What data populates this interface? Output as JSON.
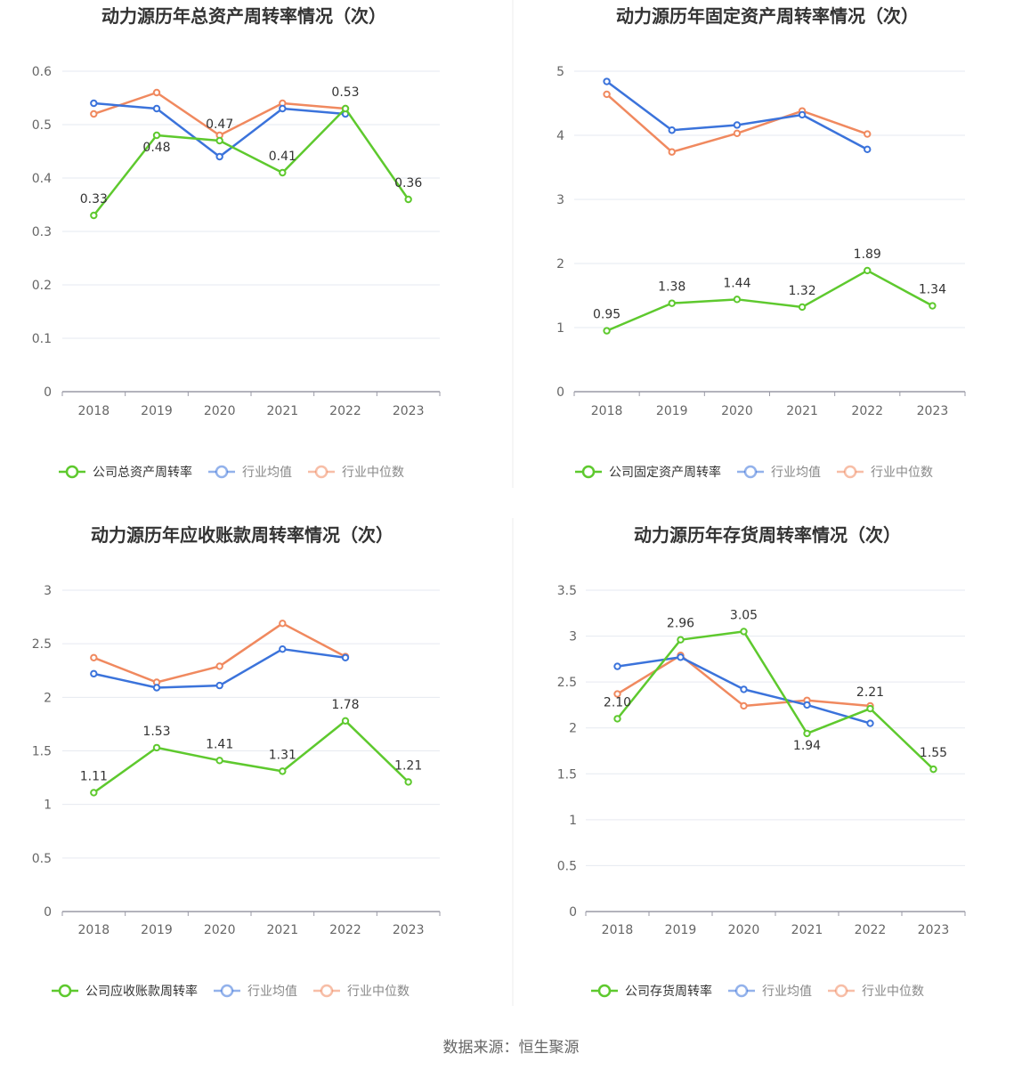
{
  "source": "数据来源：恒生聚源",
  "colors": {
    "company": "#5ec92e",
    "avg": "#3b73db",
    "median": "#f0895f",
    "grid": "#e6e9f0",
    "axis": "#9a9aa6"
  },
  "chart_data": [
    {
      "type": "line",
      "title": "动力源历年总资产周转率情况（次）",
      "categories": [
        "2018",
        "2019",
        "2020",
        "2021",
        "2022",
        "2023"
      ],
      "yticks": [
        "0",
        "0.1",
        "0.2",
        "0.3",
        "0.4",
        "0.5",
        "0.6"
      ],
      "ylim": [
        0,
        0.6
      ],
      "grid": true,
      "legend_position": "bottom",
      "series": [
        {
          "name": "公司总资产周转率",
          "color": "#5ec92e",
          "values": [
            0.33,
            0.48,
            0.47,
            0.41,
            0.53,
            0.36
          ],
          "labels": [
            "0.33",
            "0.48",
            "0.47",
            "0.41",
            "0.53",
            "0.36"
          ]
        },
        {
          "name": "行业均值",
          "color": "#3b73db",
          "values": [
            0.54,
            0.53,
            0.44,
            0.53,
            0.52,
            null
          ]
        },
        {
          "name": "行业中位数",
          "color": "#f0895f",
          "values": [
            0.52,
            0.56,
            0.48,
            0.54,
            0.53,
            null
          ]
        }
      ]
    },
    {
      "type": "line",
      "title": "动力源历年固定资产周转率情况（次）",
      "categories": [
        "2018",
        "2019",
        "2020",
        "2021",
        "2022",
        "2023"
      ],
      "yticks": [
        "0",
        "1",
        "2",
        "3",
        "4",
        "5"
      ],
      "ylim": [
        0,
        5
      ],
      "grid": true,
      "legend_position": "bottom",
      "series": [
        {
          "name": "公司固定资产周转率",
          "color": "#5ec92e",
          "values": [
            0.95,
            1.38,
            1.44,
            1.32,
            1.89,
            1.34
          ],
          "labels": [
            "0.95",
            "1.38",
            "1.44",
            "1.32",
            "1.89",
            "1.34"
          ]
        },
        {
          "name": "行业均值",
          "color": "#3b73db",
          "values": [
            4.84,
            4.08,
            4.16,
            4.32,
            3.78,
            null
          ]
        },
        {
          "name": "行业中位数",
          "color": "#f0895f",
          "values": [
            4.64,
            3.74,
            4.03,
            4.38,
            4.02,
            null
          ]
        }
      ]
    },
    {
      "type": "line",
      "title": "动力源历年应收账款周转率情况（次）",
      "categories": [
        "2018",
        "2019",
        "2020",
        "2021",
        "2022",
        "2023"
      ],
      "yticks": [
        "0",
        "0.5",
        "1",
        "1.5",
        "2",
        "2.5",
        "3"
      ],
      "ylim": [
        0,
        3
      ],
      "grid": true,
      "legend_position": "bottom",
      "series": [
        {
          "name": "公司应收账款周转率",
          "color": "#5ec92e",
          "values": [
            1.11,
            1.53,
            1.41,
            1.31,
            1.78,
            1.21
          ],
          "labels": [
            "1.11",
            "1.53",
            "1.41",
            "1.31",
            "1.78",
            "1.21"
          ]
        },
        {
          "name": "行业均值",
          "color": "#3b73db",
          "values": [
            2.22,
            2.09,
            2.11,
            2.45,
            2.37,
            null
          ]
        },
        {
          "name": "行业中位数",
          "color": "#f0895f",
          "values": [
            2.37,
            2.14,
            2.29,
            2.69,
            2.38,
            null
          ]
        }
      ]
    },
    {
      "type": "line",
      "title": "动力源历年存货周转率情况（次）",
      "categories": [
        "2018",
        "2019",
        "2020",
        "2021",
        "2022",
        "2023"
      ],
      "yticks": [
        "0",
        "0.5",
        "1",
        "1.5",
        "2",
        "2.5",
        "3",
        "3.5"
      ],
      "ylim": [
        0,
        3.5
      ],
      "grid": true,
      "legend_position": "bottom",
      "series": [
        {
          "name": "公司存货周转率",
          "color": "#5ec92e",
          "values": [
            2.1,
            2.96,
            3.05,
            1.94,
            2.21,
            1.55
          ],
          "labels": [
            "2.10",
            "2.96",
            "3.05",
            "1.94",
            "2.21",
            "1.55"
          ]
        },
        {
          "name": "行业均值",
          "color": "#3b73db",
          "values": [
            2.67,
            2.77,
            2.42,
            2.25,
            2.05,
            null
          ]
        },
        {
          "name": "行业中位数",
          "color": "#f0895f",
          "values": [
            2.37,
            2.79,
            2.24,
            2.3,
            2.24,
            null
          ]
        }
      ]
    }
  ]
}
